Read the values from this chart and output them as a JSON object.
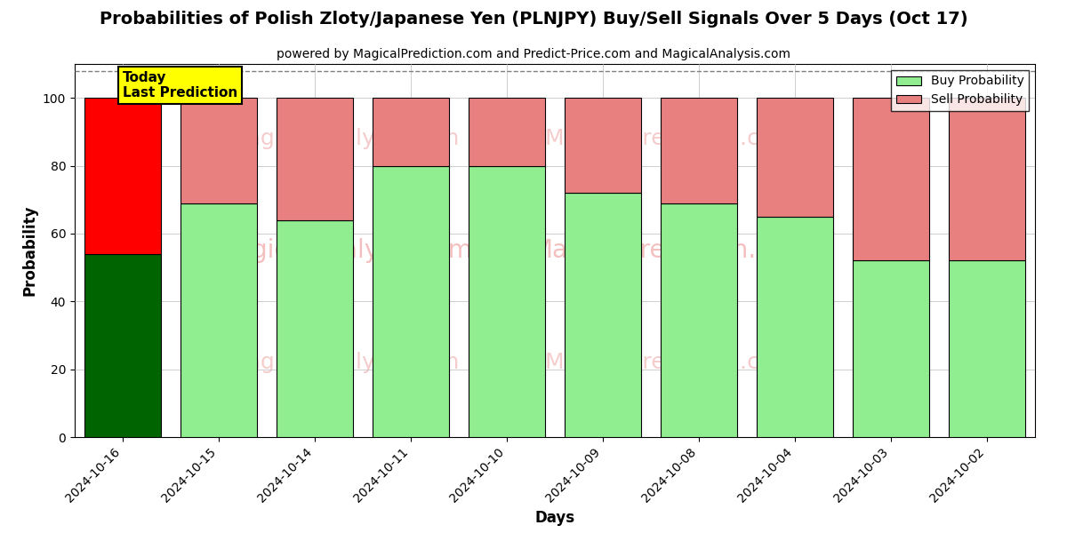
{
  "title": "Probabilities of Polish Zloty/Japanese Yen (PLNJPY) Buy/Sell Signals Over 5 Days (Oct 17)",
  "subtitle": "powered by MagicalPrediction.com and Predict-Price.com and MagicalAnalysis.com",
  "xlabel": "Days",
  "ylabel": "Probability",
  "categories": [
    "2024-10-16",
    "2024-10-15",
    "2024-10-14",
    "2024-10-11",
    "2024-10-10",
    "2024-10-09",
    "2024-10-08",
    "2024-10-04",
    "2024-10-03",
    "2024-10-02"
  ],
  "buy_values": [
    54,
    69,
    64,
    80,
    80,
    72,
    69,
    65,
    52,
    52
  ],
  "sell_values": [
    46,
    31,
    36,
    20,
    20,
    28,
    31,
    35,
    48,
    48
  ],
  "buy_colors": [
    "#006400",
    "#90EE90",
    "#90EE90",
    "#90EE90",
    "#90EE90",
    "#90EE90",
    "#90EE90",
    "#90EE90",
    "#90EE90",
    "#90EE90"
  ],
  "sell_colors": [
    "#FF0000",
    "#E88080",
    "#E88080",
    "#E88080",
    "#E88080",
    "#E88080",
    "#E88080",
    "#E88080",
    "#E88080",
    "#E88080"
  ],
  "today_label": "Today\nLast Prediction",
  "legend_buy_label": "Buy Probability",
  "legend_sell_label": "Sell Probability",
  "ylim": [
    0,
    110
  ],
  "yticks": [
    0,
    20,
    40,
    60,
    80,
    100
  ],
  "dashed_line_y": 108,
  "bg_color": "#ffffff",
  "grid_color": "#bbbbbb",
  "title_fontsize": 14,
  "subtitle_fontsize": 10,
  "axis_label_fontsize": 12,
  "tick_fontsize": 10,
  "bar_width": 0.8
}
